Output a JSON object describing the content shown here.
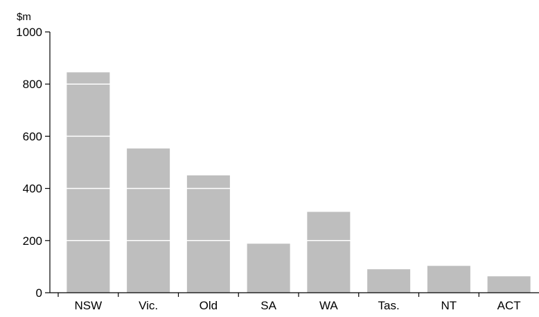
{
  "chart_data": {
    "type": "bar",
    "title": "",
    "unit_label": "$m",
    "xlabel": "",
    "ylabel": "",
    "categories": [
      "NSW",
      "Vic.",
      "Old",
      "SA",
      "WA",
      "Tas.",
      "NT",
      "ACT"
    ],
    "values": [
      845,
      553,
      450,
      188,
      310,
      90,
      103,
      63
    ],
    "ylim": [
      0,
      1000
    ],
    "yticks": [
      0,
      200,
      400,
      600,
      800,
      1000
    ],
    "grid": true,
    "legend": "none",
    "colors": {
      "bar": "#bebebe",
      "gridline": "#ffffff",
      "axis": "#000000"
    }
  }
}
